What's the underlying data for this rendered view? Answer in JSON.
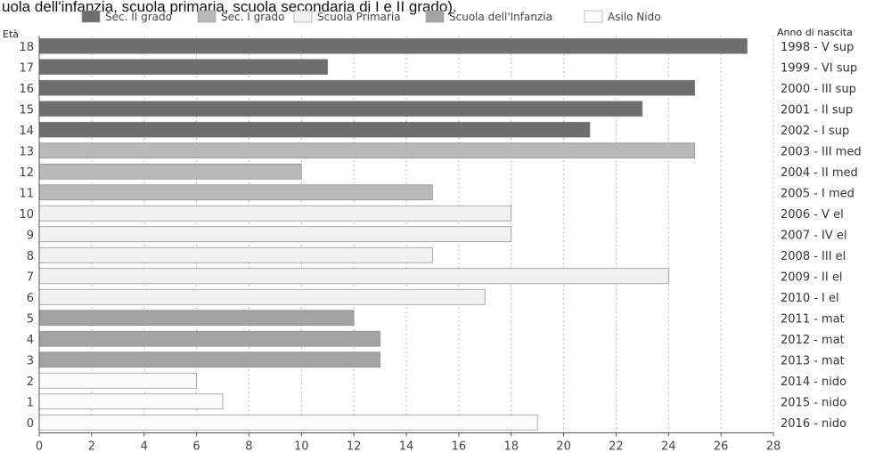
{
  "chart_data": {
    "type": "bar",
    "orientation": "horizontal",
    "title": "uola dell'infanzia, scuola primaria, scuola secondaria di I e II grado).",
    "ylabel": "Età",
    "right_label": "Anno di nascita",
    "xlim": [
      0,
      28
    ],
    "x_ticks": [
      0,
      2,
      4,
      6,
      8,
      10,
      12,
      14,
      16,
      18,
      20,
      22,
      24,
      26,
      28
    ],
    "grid": true,
    "legend_position": "top",
    "legend": [
      {
        "name": "Sec. II grado",
        "color": "#6e6e6e"
      },
      {
        "name": "Sec. I grado",
        "color": "#b9b9b9"
      },
      {
        "name": "Scuola Primaria",
        "color": "#f1f1f1"
      },
      {
        "name": "Scuola dell'Infanzia",
        "color": "#a3a3a3"
      },
      {
        "name": "Asilo Nido",
        "color": "#fbfbfb"
      }
    ],
    "rows": [
      {
        "age": "18",
        "birth": "1998 - V sup",
        "value": 27,
        "group": 0
      },
      {
        "age": "17",
        "birth": "1999 - VI sup",
        "value": 11,
        "group": 0
      },
      {
        "age": "16",
        "birth": "2000 - III sup",
        "value": 25,
        "group": 0
      },
      {
        "age": "15",
        "birth": "2001 - II sup",
        "value": 23,
        "group": 0
      },
      {
        "age": "14",
        "birth": "2002 - I sup",
        "value": 21,
        "group": 0
      },
      {
        "age": "13",
        "birth": "2003 - III med",
        "value": 25,
        "group": 1
      },
      {
        "age": "12",
        "birth": "2004 - II med",
        "value": 10,
        "group": 1
      },
      {
        "age": "11",
        "birth": "2005 - I med",
        "value": 15,
        "group": 1
      },
      {
        "age": "10",
        "birth": "2006 - V el",
        "value": 18,
        "group": 2
      },
      {
        "age": "9",
        "birth": "2007 - IV el",
        "value": 18,
        "group": 2
      },
      {
        "age": "8",
        "birth": "2008 - III el",
        "value": 15,
        "group": 2
      },
      {
        "age": "7",
        "birth": "2009 - II el",
        "value": 24,
        "group": 2
      },
      {
        "age": "6",
        "birth": "2010 - I el",
        "value": 17,
        "group": 2
      },
      {
        "age": "5",
        "birth": "2011 - mat",
        "value": 12,
        "group": 3
      },
      {
        "age": "4",
        "birth": "2012 - mat",
        "value": 13,
        "group": 3
      },
      {
        "age": "3",
        "birth": "2013 - mat",
        "value": 13,
        "group": 3
      },
      {
        "age": "2",
        "birth": "2014 - nido",
        "value": 6,
        "group": 4
      },
      {
        "age": "1",
        "birth": "2015 - nido",
        "value": 7,
        "group": 4
      },
      {
        "age": "0",
        "birth": "2016 - nido",
        "value": 19,
        "group": 4
      }
    ]
  }
}
